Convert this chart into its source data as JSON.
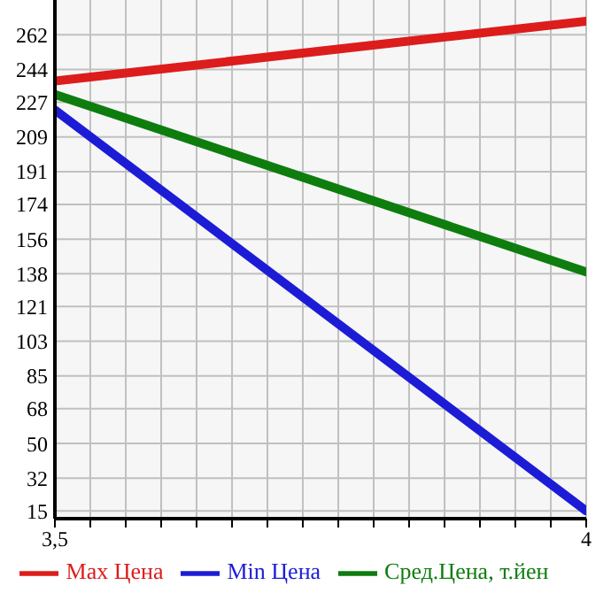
{
  "chart_data": {
    "type": "line",
    "x": [
      3.5,
      4
    ],
    "series": [
      {
        "name": "Max Цена",
        "color": "#dd1c1c",
        "values": [
          238,
          269
        ]
      },
      {
        "name": "Min Цена",
        "color": "#1c1cd6",
        "values": [
          223,
          15
        ]
      },
      {
        "name": "Сред.Цена, т.йен",
        "color": "#0e7d0e",
        "values": [
          231,
          139
        ]
      }
    ],
    "xlim": [
      3.5,
      4
    ],
    "xticks": [
      {
        "value": 3.5,
        "label": "3,5"
      },
      {
        "value": 3.5333,
        "label": null
      },
      {
        "value": 3.5667,
        "label": null
      },
      {
        "value": 3.6,
        "label": null
      },
      {
        "value": 3.6333,
        "label": null
      },
      {
        "value": 3.6667,
        "label": null
      },
      {
        "value": 3.7,
        "label": null
      },
      {
        "value": 3.7333,
        "label": null
      },
      {
        "value": 3.7667,
        "label": null
      },
      {
        "value": 3.8,
        "label": null
      },
      {
        "value": 3.8333,
        "label": null
      },
      {
        "value": 3.8667,
        "label": null
      },
      {
        "value": 3.9,
        "label": null
      },
      {
        "value": 3.9333,
        "label": null
      },
      {
        "value": 3.9667,
        "label": null
      },
      {
        "value": 4,
        "label": "4"
      }
    ],
    "ylim": [
      11,
      280
    ],
    "yticks": [
      15,
      32,
      50,
      68,
      85,
      103,
      121,
      138,
      156,
      174,
      191,
      209,
      227,
      244,
      262
    ],
    "grid": true,
    "legend": "bottom",
    "marker": "none",
    "line_style": "solid"
  }
}
